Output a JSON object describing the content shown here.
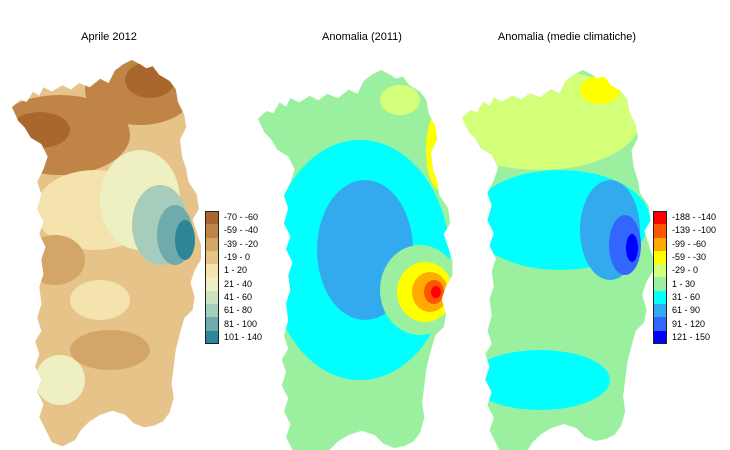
{
  "titles": {
    "left": "Aprile 2012",
    "middle": "Anomalia (2011)",
    "right": "Anomalia (medie climatiche)"
  },
  "legend_left": [
    {
      "label": "-70 - -60",
      "color": "#a9662d"
    },
    {
      "label": "-59 - -40",
      "color": "#c08546"
    },
    {
      "label": "-39 - -20",
      "color": "#d3a566"
    },
    {
      "label": "-19 - 0",
      "color": "#e6c489"
    },
    {
      "label": "1 - 20",
      "color": "#f4e3ad"
    },
    {
      "label": "21 - 40",
      "color": "#eef0c2"
    },
    {
      "label": "41 - 60",
      "color": "#cde3c0"
    },
    {
      "label": "61 - 80",
      "color": "#a6cdbb"
    },
    {
      "label": "81 - 100",
      "color": "#6fabad"
    },
    {
      "label": "101 - 140",
      "color": "#2c8697"
    }
  ],
  "legend_right": [
    {
      "label": "-188 - -140",
      "color": "#ff0000"
    },
    {
      "label": "-139 - -100",
      "color": "#ff5500"
    },
    {
      "label": "-99 - -60",
      "color": "#ffaa00"
    },
    {
      "label": "-59 - -30",
      "color": "#ffff00"
    },
    {
      "label": "-29 - 0",
      "color": "#d4ff78"
    },
    {
      "label": "1 - 30",
      "color": "#9bf0a0"
    },
    {
      "label": "31 - 60",
      "color": "#00ffff"
    },
    {
      "label": "61 - 90",
      "color": "#33aaee"
    },
    {
      "label": "91 - 120",
      "color": "#3366ff"
    },
    {
      "label": "121 - 150",
      "color": "#0000ff"
    }
  ]
}
